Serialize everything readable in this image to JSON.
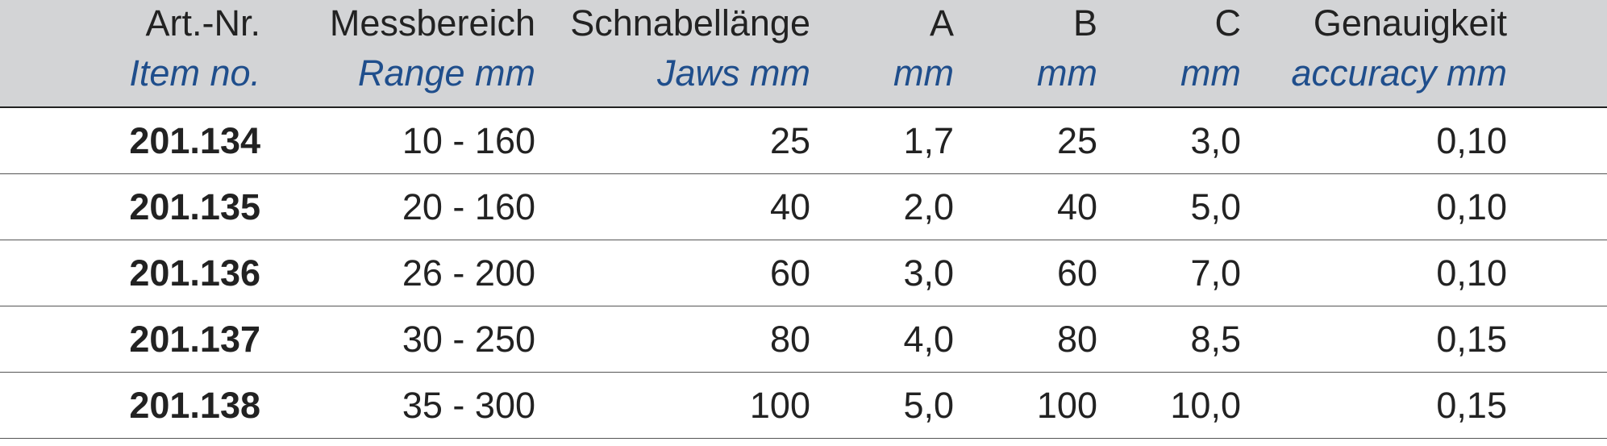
{
  "table": {
    "headers": [
      {
        "de": "Art.-Nr.",
        "en": "Item no."
      },
      {
        "de": "Messbereich",
        "en": "Range mm"
      },
      {
        "de": "Schnabellänge",
        "en": "Jaws mm"
      },
      {
        "de": "A",
        "en": "mm"
      },
      {
        "de": "B",
        "en": "mm"
      },
      {
        "de": "C",
        "en": "mm"
      },
      {
        "de": "Genauigkeit",
        "en": "accuracy mm"
      }
    ],
    "rows": [
      [
        "201.134",
        "10 - 160",
        "25",
        "1,7",
        "25",
        "3,0",
        "0,10"
      ],
      [
        "201.135",
        "20 - 160",
        "40",
        "2,0",
        "40",
        "5,0",
        "0,10"
      ],
      [
        "201.136",
        "26 - 200",
        "60",
        "3,0",
        "60",
        "7,0",
        "0,10"
      ],
      [
        "201.137",
        "30 - 250",
        "80",
        "4,0",
        "80",
        "8,5",
        "0,15"
      ],
      [
        "201.138",
        "35 - 300",
        "100",
        "5,0",
        "100",
        "10,0",
        "0,15"
      ]
    ]
  },
  "colors": {
    "header_background": "#d3d4d6",
    "english_label": "#1f4e8c",
    "text": "#222222"
  }
}
